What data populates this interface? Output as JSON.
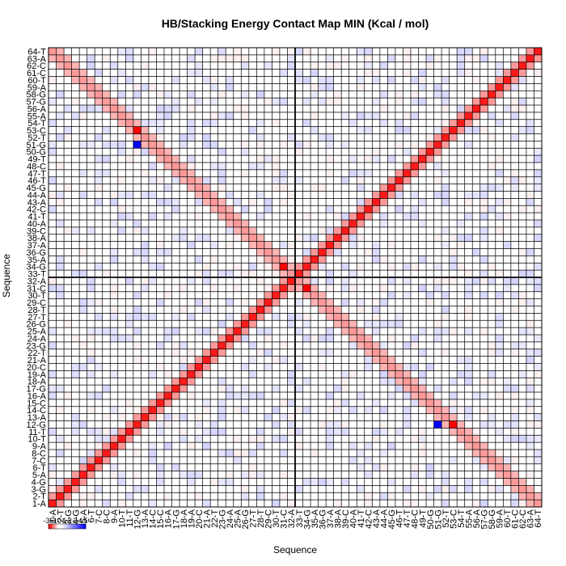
{
  "chart_data": {
    "type": "heatmap",
    "title": "HB/Stacking Energy Contact Map MIN (Kcal / mol)",
    "xlabel": "Sequence",
    "ylabel": "Sequence",
    "labels": [
      "1-A",
      "2-T",
      "3-G",
      "4-G",
      "5-A",
      "6-T",
      "7-C",
      "8-C",
      "9-A",
      "10-T",
      "11-T",
      "12-G",
      "13-A",
      "14-C",
      "15-C",
      "16-A",
      "17-G",
      "18-A",
      "19-A",
      "20-C",
      "21-A",
      "22-T",
      "23-G",
      "24-A",
      "25-A",
      "26-G",
      "27-T",
      "28-T",
      "29-C",
      "30-T",
      "31-C",
      "32-A",
      "33-T",
      "34-G",
      "35-A",
      "36-G",
      "37-A",
      "38-A",
      "39-C",
      "40-A",
      "41-T",
      "42-C",
      "43-A",
      "44-A",
      "45-G",
      "46-T",
      "47-T",
      "48-C",
      "49-T",
      "50-G",
      "51-G",
      "52-T",
      "53-C",
      "54-T",
      "55-A",
      "56-A",
      "57-G",
      "58-G",
      "59-A",
      "60-T",
      "61-C",
      "62-C",
      "63-A",
      "64-T"
    ],
    "n": 64,
    "legend_ticks": [
      "-35",
      "-1",
      "0",
      "1",
      "2",
      "3",
      "4",
      "5"
    ],
    "legend_ticks_visible_text": "-35 -1 0 1 2 3 4 5",
    "diagonal_energy": -9,
    "offdiagonal_energy": -4,
    "cross_energy": -4,
    "antidiagonal_energy": -3,
    "strong_contacts": [
      {
        "i": 51,
        "j": 12,
        "value": 5
      },
      {
        "i": 12,
        "j": 51,
        "value": 5
      },
      {
        "i": 53,
        "j": 12,
        "value": -35
      },
      {
        "i": 12,
        "j": 53,
        "value": -35
      },
      {
        "i": 31,
        "j": 34,
        "value": -35
      },
      {
        "i": 34,
        "j": 31,
        "value": -35
      }
    ],
    "grid": true,
    "divider_after_index": 32,
    "colors": {
      "negative": "#ff0000",
      "positive": "#0000ff",
      "zero": "#ffffff",
      "grid": "#000000"
    }
  }
}
